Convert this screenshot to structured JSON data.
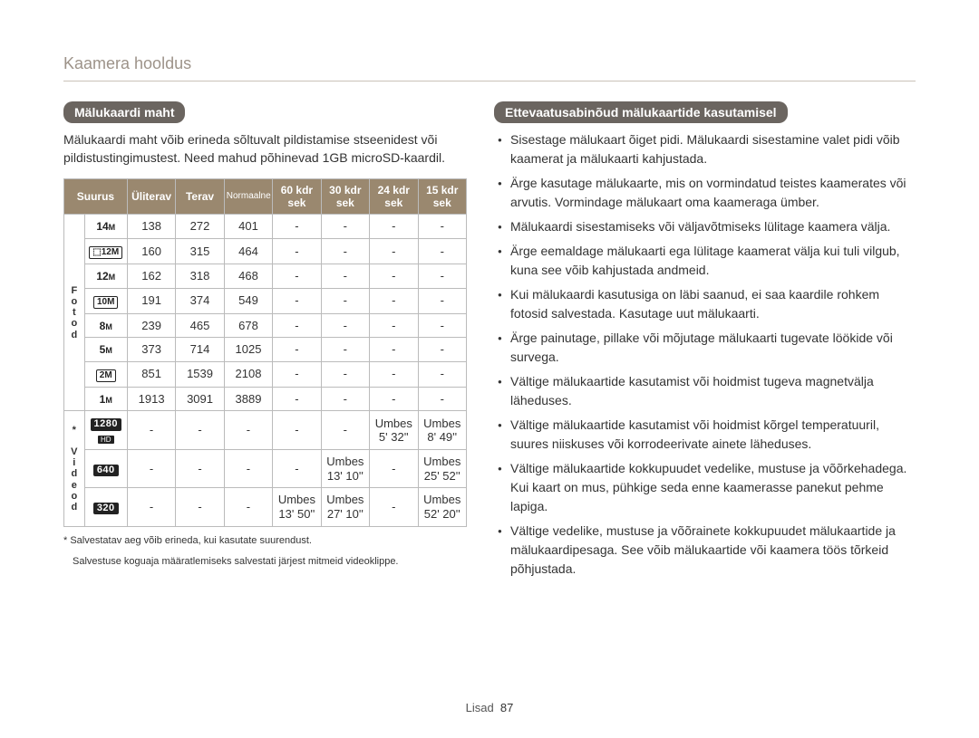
{
  "page": {
    "title": "Kaamera hooldus",
    "footer_label": "Lisad",
    "footer_page": "87"
  },
  "left": {
    "pill": "Mälukaardi maht",
    "intro": "Mälukaardi maht võib erineda sõltuvalt pildistamise stseenidest või pildistustingimustest. Need mahud põhinevad 1GB microSD-kaardil.",
    "headers": {
      "suurus": "Suurus",
      "uliterav": "Üliterav",
      "terav": "Terav",
      "normaalne": "Normaalne",
      "k60": "60 kdr sek",
      "k30": "30 kdr sek",
      "k24": "24 kdr sek",
      "k15": "15 kdr sek"
    },
    "side": {
      "fotod": "F\no\nt\no\nd",
      "videod": "*\n\nV\ni\nd\ne\no\nd"
    },
    "photo_rows": [
      {
        "uliterav": "138",
        "terav": "272",
        "norm": "401"
      },
      {
        "uliterav": "160",
        "terav": "315",
        "norm": "464"
      },
      {
        "uliterav": "162",
        "terav": "318",
        "norm": "468"
      },
      {
        "uliterav": "191",
        "terav": "374",
        "norm": "549"
      },
      {
        "uliterav": "239",
        "terav": "465",
        "norm": "678"
      },
      {
        "uliterav": "373",
        "terav": "714",
        "norm": "1025"
      },
      {
        "uliterav": "851",
        "terav": "1539",
        "norm": "2108"
      },
      {
        "uliterav": "1913",
        "terav": "3091",
        "norm": "3889"
      }
    ],
    "photo_icons": [
      "14M",
      "12Mw",
      "12M",
      "10M",
      "8M",
      "5M",
      "2M",
      "1M"
    ],
    "video_rows": [
      {
        "label": "1280",
        "hd": true,
        "k60": "-",
        "k30": "-",
        "k24": "Umbes 5' 32''",
        "k15": "Umbes 8' 49''"
      },
      {
        "label": "640",
        "k60": "-",
        "k30": "Umbes 13' 10''",
        "k24": "-",
        "k15": "Umbes 25' 52''"
      },
      {
        "label": "320",
        "k60": "Umbes 13' 50''",
        "k30": "Umbes 27' 10''",
        "k24": "-",
        "k15": "Umbes 52' 20''"
      }
    ],
    "footnote1": "* Salvestatav aeg võib erineda, kui kasutate suurendust.",
    "footnote2": "Salvestuse koguaja määratlemiseks salvestati järjest mitmeid videoklippe."
  },
  "right": {
    "pill": "Ettevaatusabinõud mälukaartide kasutamisel",
    "items": [
      "Sisestage mälukaart õiget pidi. Mälukaardi sisestamine valet pidi võib kaamerat ja mälukaarti kahjustada.",
      "Ärge kasutage mälukaarte, mis on vormindatud teistes kaamerates või arvutis. Vormindage mälukaart oma kaameraga ümber.",
      "Mälukaardi sisestamiseks või väljavõtmiseks lülitage kaamera välja.",
      "Ärge eemaldage mälukaarti ega lülitage kaamerat välja kui tuli vilgub, kuna see võib kahjustada andmeid.",
      "Kui mälukaardi kasutusiga on läbi saanud, ei saa kaardile rohkem fotosid salvestada. Kasutage uut mälukaarti.",
      "Ärge painutage, pillake või mõjutage mälukaarti tugevate löökide või survega.",
      "Vältige mälukaartide kasutamist või hoidmist tugeva magnetvälja läheduses.",
      "Vältige mälukaartide kasutamist või hoidmist kõrgel temperatuuril, suures niiskuses või korrodeerivate ainete läheduses.",
      "Vältige mälukaartide kokkupuudet vedelike, mustuse ja võõrkehadega. Kui kaart on mus, pühkige seda enne kaamerasse panekut pehme lapiga.",
      "Vältige vedelike, mustuse ja võõrainete kokkupuudet mälukaartide ja mälukaardipesaga. See võib mälukaartide või kaamera töös tõrkeid põhjustada."
    ]
  }
}
